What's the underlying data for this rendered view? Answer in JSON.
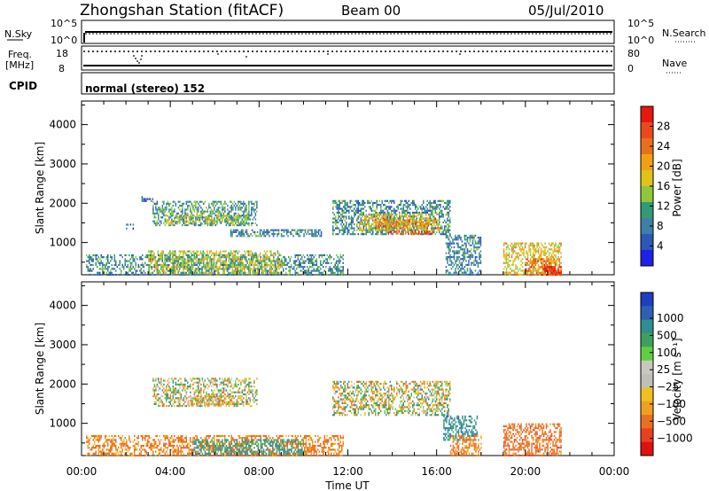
{
  "header": {
    "station": "Zhongshan Station (fitACF)",
    "beam": "Beam 00",
    "date": "05/Jul/2010"
  },
  "top_panels": {
    "nsky_label": "N.Sky",
    "nsky_ticks": [
      "10^5",
      "10^0"
    ],
    "nsearch_label": "N.Search",
    "nsearch_ticks": [
      "10^5",
      "10^0"
    ],
    "freq_label": "Freq.",
    "freq_unit": "[MHz]",
    "freq_ticks": [
      "18",
      "8"
    ],
    "nave_label": "Nave",
    "nave_ticks": [
      "80",
      "0"
    ],
    "cpid_label": "CPID",
    "cpid_text": "normal (stereo) 152"
  },
  "x_axis": {
    "label": "Time UT",
    "ticks": [
      "00:00",
      "04:00",
      "08:00",
      "12:00",
      "16:00",
      "20:00",
      "00:00"
    ]
  },
  "chart_data": [
    {
      "type": "heatmap",
      "panel": "power",
      "ylabel": "Slant Range [km]",
      "x_range_hours": [
        0,
        24
      ],
      "ylim": [
        180,
        4600
      ],
      "yticks": [
        "1000",
        "2000",
        "3000",
        "4000"
      ],
      "colorbar_label": "Power [dB]",
      "colorbar_ticks": [
        "4",
        "8",
        "12",
        "16",
        "20",
        "24",
        "28"
      ],
      "colorbar_colors": [
        "#1e22e6",
        "#2d58b8",
        "#3f7fa6",
        "#339977",
        "#8ec83a",
        "#e0c21a",
        "#f0a015",
        "#e8701c",
        "#ea4a1a",
        "#e5170f"
      ],
      "regions": [
        {
          "t0": 2.7,
          "t1": 3.2,
          "r0": 2040,
          "r1": 2180,
          "value": 6
        },
        {
          "t0": 3.2,
          "t1": 7.9,
          "r0": 1440,
          "r1": 2060,
          "value": 10
        },
        {
          "t0": 3.8,
          "t1": 7.5,
          "r0": 1500,
          "r1": 1700,
          "value": 14
        },
        {
          "t0": 6.7,
          "t1": 10.8,
          "r0": 1180,
          "r1": 1340,
          "value": 8
        },
        {
          "t0": 2.0,
          "t1": 2.3,
          "r0": 1380,
          "r1": 1480,
          "value": 6
        },
        {
          "t0": 11.3,
          "t1": 16.6,
          "r0": 1200,
          "r1": 2080,
          "value": 9
        },
        {
          "t0": 12.5,
          "t1": 16.1,
          "r0": 1320,
          "r1": 1740,
          "value": 17
        },
        {
          "t0": 13.2,
          "t1": 15.6,
          "r0": 1400,
          "r1": 1600,
          "value": 21
        },
        {
          "t0": 13.8,
          "t1": 15.8,
          "r0": 1230,
          "r1": 1300,
          "value": 26
        },
        {
          "t0": 0.2,
          "t1": 11.8,
          "r0": 190,
          "r1": 700,
          "value": 9
        },
        {
          "t0": 3.0,
          "t1": 9.0,
          "r0": 220,
          "r1": 800,
          "value": 15
        },
        {
          "t0": 16.4,
          "t1": 18.0,
          "r0": 200,
          "r1": 1200,
          "value": 8
        },
        {
          "t0": 19.0,
          "t1": 21.6,
          "r0": 200,
          "r1": 1000,
          "value": 17
        },
        {
          "t0": 20.0,
          "t1": 21.5,
          "r0": 200,
          "r1": 600,
          "value": 23
        },
        {
          "t0": 20.8,
          "t1": 21.6,
          "r0": 190,
          "r1": 400,
          "value": 29
        }
      ]
    },
    {
      "type": "heatmap",
      "panel": "velocity",
      "ylabel": "Slant Range [km]",
      "x_range_hours": [
        0,
        24
      ],
      "ylim": [
        180,
        4600
      ],
      "yticks": [
        "1000",
        "2000",
        "3000",
        "4000"
      ],
      "colorbar_label": "Velocity [m s⁻¹]",
      "colorbar_ticks": [
        "1000",
        "500",
        "100",
        "25",
        "−25",
        "−100",
        "−500",
        "−1000"
      ],
      "colorbar_colors": [
        "#1e3fc2",
        "#2f5fb3",
        "#2f8f8f",
        "#3f9f5f",
        "#5fcf3f",
        "#c8c8c0",
        "#c0c0b8",
        "#f0c020",
        "#f0a020",
        "#ea7020",
        "#ea4020",
        "#e01010"
      ],
      "regions": [
        {
          "t0": 3.2,
          "t1": 7.9,
          "r0": 1440,
          "r1": 2160,
          "value": 0
        },
        {
          "t0": 4.8,
          "t1": 6.8,
          "r0": 1500,
          "r1": 1700,
          "value": -80
        },
        {
          "t0": 11.3,
          "t1": 16.6,
          "r0": 1200,
          "r1": 2080,
          "value": 0
        },
        {
          "t0": 0.2,
          "t1": 11.8,
          "r0": 190,
          "r1": 700,
          "value": -150
        },
        {
          "t0": 5.0,
          "t1": 10.0,
          "r0": 250,
          "r1": 600,
          "value": 150
        },
        {
          "t0": 16.3,
          "t1": 17.8,
          "r0": 600,
          "r1": 1200,
          "value": 200
        },
        {
          "t0": 16.6,
          "t1": 18.0,
          "r0": 200,
          "r1": 700,
          "value": -150
        },
        {
          "t0": 19.0,
          "t1": 21.6,
          "r0": 200,
          "r1": 1000,
          "value": -200
        }
      ]
    }
  ]
}
